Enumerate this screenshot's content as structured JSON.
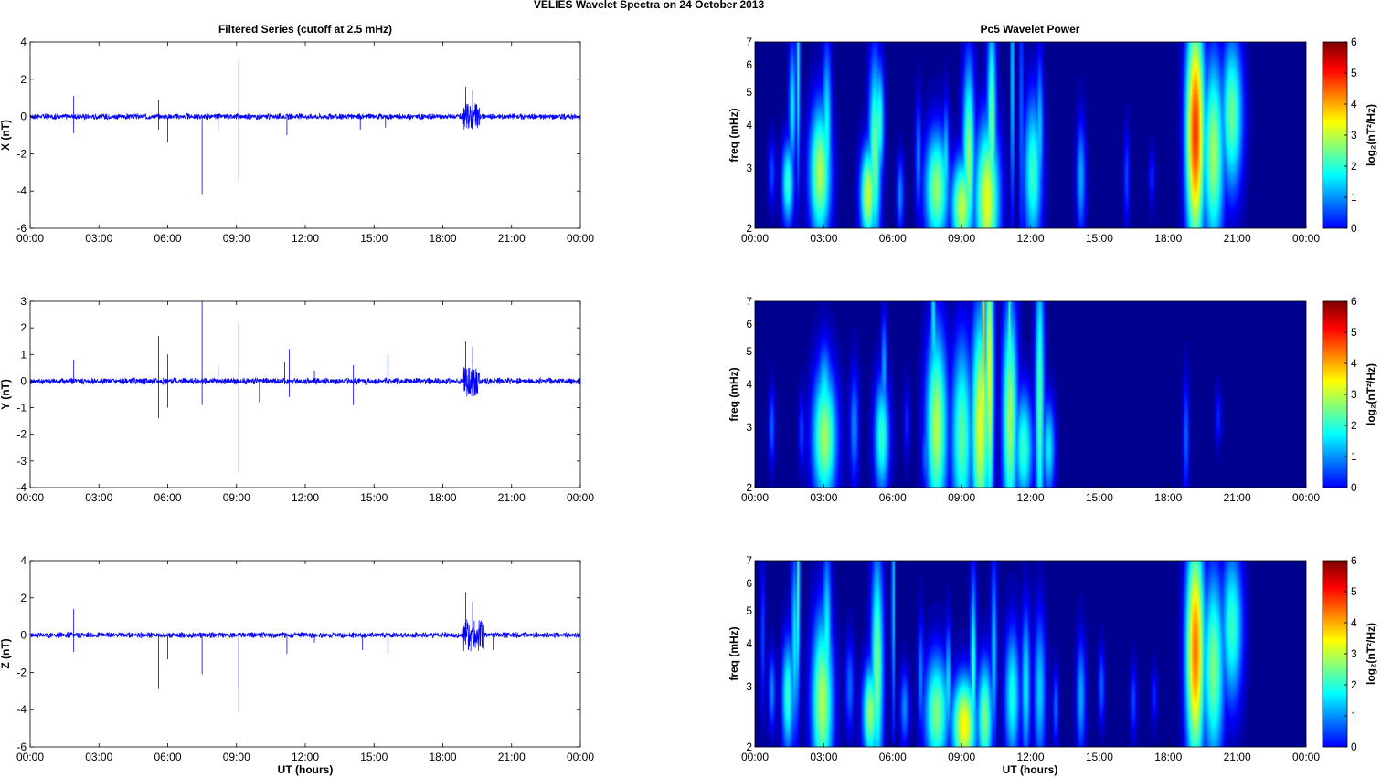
{
  "figure": {
    "title": "VELIES Wavelet Spectra on 24 October   2013",
    "left_title": "Filtered Series (cutoff at 2.5 mHz)",
    "right_title": "Pc5 Wavelet Power",
    "x_label": "UT (hours)",
    "freq_label": "freq (mHz)",
    "colorbar_label": "log₂(nT²/Hz)"
  },
  "chart_data": [
    {
      "type": "line",
      "panel": "X",
      "ylabel": "X (nT)",
      "xlim": [
        0,
        24
      ],
      "ylim": [
        -6,
        4
      ],
      "xticks": [
        "00:00",
        "03:00",
        "06:00",
        "09:00",
        "12:00",
        "15:00",
        "18:00",
        "21:00",
        "00:00"
      ],
      "yticks": [
        -6,
        -4,
        -2,
        0,
        2,
        4
      ],
      "baseline_amplitude": 0.15,
      "series_color": "#0000ff",
      "spikes": [
        [
          1.9,
          1.1
        ],
        [
          1.9,
          -0.9
        ],
        [
          5.6,
          0.9
        ],
        [
          5.6,
          -0.7
        ],
        [
          6.0,
          -1.4
        ],
        [
          7.5,
          -4.2
        ],
        [
          8.2,
          -0.8
        ],
        [
          9.1,
          3.0
        ],
        [
          9.1,
          -3.4
        ],
        [
          11.2,
          -1.0
        ],
        [
          14.4,
          -0.7
        ],
        [
          15.5,
          -0.6
        ],
        [
          19.0,
          1.6
        ],
        [
          19.1,
          -0.4
        ],
        [
          19.3,
          1.4
        ]
      ],
      "burst_hours": [
        [
          18.9,
          19.6,
          0.7
        ]
      ]
    },
    {
      "type": "line",
      "panel": "Y",
      "ylabel": "Y (nT)",
      "xlim": [
        0,
        24
      ],
      "ylim": [
        -4,
        3
      ],
      "xticks": [
        "00:00",
        "03:00",
        "06:00",
        "09:00",
        "12:00",
        "15:00",
        "18:00",
        "21:00",
        "00:00"
      ],
      "yticks": [
        -4,
        -3,
        -2,
        -1,
        0,
        1,
        2,
        3
      ],
      "baseline_amplitude": 0.12,
      "series_color": "#0000ff",
      "spikes": [
        [
          1.9,
          0.8
        ],
        [
          5.6,
          1.7
        ],
        [
          5.6,
          -1.4
        ],
        [
          6.0,
          1.0
        ],
        [
          6.0,
          -1.0
        ],
        [
          7.5,
          3.0
        ],
        [
          7.5,
          -0.9
        ],
        [
          8.2,
          0.6
        ],
        [
          9.1,
          2.2
        ],
        [
          9.1,
          -3.4
        ],
        [
          10.0,
          -0.8
        ],
        [
          11.1,
          0.7
        ],
        [
          11.3,
          1.2
        ],
        [
          11.3,
          -0.6
        ],
        [
          12.4,
          0.4
        ],
        [
          14.1,
          0.6
        ],
        [
          14.1,
          -0.9
        ],
        [
          15.6,
          1.0
        ],
        [
          19.0,
          1.5
        ],
        [
          19.1,
          -0.4
        ],
        [
          19.3,
          1.3
        ]
      ],
      "burst_hours": [
        [
          18.9,
          19.6,
          0.6
        ]
      ]
    },
    {
      "type": "line",
      "panel": "Z",
      "ylabel": "Z (nT)",
      "xlim": [
        0,
        24
      ],
      "ylim": [
        -6,
        4
      ],
      "xticks": [
        "00:00",
        "03:00",
        "06:00",
        "09:00",
        "12:00",
        "15:00",
        "18:00",
        "21:00",
        "00:00"
      ],
      "yticks": [
        -6,
        -4,
        -2,
        0,
        2,
        4
      ],
      "baseline_amplitude": 0.15,
      "series_color": "#0000ff",
      "spikes": [
        [
          1.9,
          1.4
        ],
        [
          1.9,
          -0.9
        ],
        [
          5.6,
          -2.9
        ],
        [
          6.0,
          -1.3
        ],
        [
          7.5,
          -2.1
        ],
        [
          9.1,
          -4.1
        ],
        [
          9.1,
          -2.8
        ],
        [
          11.2,
          -1.0
        ],
        [
          12.4,
          -0.4
        ],
        [
          14.5,
          -0.8
        ],
        [
          15.6,
          -1.0
        ],
        [
          19.0,
          2.3
        ],
        [
          19.0,
          -0.5
        ],
        [
          19.3,
          1.8
        ],
        [
          20.2,
          -0.8
        ]
      ],
      "burst_hours": [
        [
          18.9,
          19.8,
          0.9
        ]
      ]
    },
    {
      "type": "heatmap",
      "panel": "X",
      "ylabel": "freq (mHz)",
      "xlim": [
        0,
        24
      ],
      "ylim": [
        2,
        7
      ],
      "y_scale": "log",
      "clim": [
        0,
        6
      ],
      "background": "#00008f",
      "yticks": [
        2,
        3,
        4,
        5,
        6,
        7
      ],
      "xticks": [
        "00:00",
        "03:00",
        "06:00",
        "09:00",
        "12:00",
        "15:00",
        "18:00",
        "21:00",
        "00:00"
      ],
      "blobs": [
        [
          0.7,
          2.9,
          0.12,
          0.18,
          1.2
        ],
        [
          1.4,
          2.7,
          0.2,
          0.22,
          2.6
        ],
        [
          1.6,
          4.5,
          0.12,
          0.35,
          2.2
        ],
        [
          1.85,
          6.0,
          0.06,
          0.6,
          2.6
        ],
        [
          2.8,
          2.9,
          0.35,
          0.35,
          3.3
        ],
        [
          3.1,
          3.8,
          0.15,
          0.45,
          2.4
        ],
        [
          4.9,
          2.5,
          0.25,
          0.25,
          3.5
        ],
        [
          5.2,
          3.3,
          0.2,
          0.5,
          3.0
        ],
        [
          5.4,
          4.1,
          0.15,
          0.3,
          2.6
        ],
        [
          6.3,
          2.5,
          0.12,
          0.2,
          1.6
        ],
        [
          7.1,
          3.2,
          0.1,
          0.3,
          1.6
        ],
        [
          7.9,
          2.6,
          0.4,
          0.3,
          3.1
        ],
        [
          8.3,
          3.1,
          0.1,
          0.3,
          2.2
        ],
        [
          9.0,
          2.3,
          0.35,
          0.25,
          3.4
        ],
        [
          9.3,
          3.2,
          0.2,
          0.5,
          3.1
        ],
        [
          10.1,
          2.4,
          0.4,
          0.4,
          3.6
        ],
        [
          10.3,
          3.9,
          0.15,
          0.6,
          3.0
        ],
        [
          11.2,
          5.4,
          0.05,
          0.7,
          2.4
        ],
        [
          11.6,
          4.0,
          0.08,
          0.8,
          1.4
        ],
        [
          12.1,
          2.9,
          0.3,
          0.4,
          2.6
        ],
        [
          12.4,
          3.8,
          0.12,
          0.4,
          2.0
        ],
        [
          14.2,
          2.8,
          0.15,
          0.3,
          1.8
        ],
        [
          16.2,
          2.8,
          0.1,
          0.25,
          1.2
        ],
        [
          17.3,
          2.8,
          0.1,
          0.15,
          1.0
        ],
        [
          19.2,
          3.8,
          0.3,
          0.6,
          5.0
        ],
        [
          19.4,
          5.0,
          0.08,
          0.5,
          3.0
        ],
        [
          20.0,
          3.3,
          0.35,
          0.5,
          3.2
        ],
        [
          20.8,
          4.3,
          0.35,
          0.4,
          2.9
        ]
      ]
    },
    {
      "type": "heatmap",
      "panel": "Y",
      "ylabel": "freq (mHz)",
      "xlim": [
        0,
        24
      ],
      "ylim": [
        2,
        7
      ],
      "y_scale": "log",
      "clim": [
        0,
        6
      ],
      "background": "#00008f",
      "yticks": [
        2,
        3,
        4,
        5,
        6,
        7
      ],
      "xticks": [
        "00:00",
        "03:00",
        "06:00",
        "09:00",
        "12:00",
        "15:00",
        "18:00",
        "21:00",
        "00:00"
      ],
      "blobs": [
        [
          0.7,
          3.0,
          0.1,
          0.2,
          1.4
        ],
        [
          2.0,
          2.9,
          0.1,
          0.2,
          1.2
        ],
        [
          3.0,
          2.8,
          0.4,
          0.35,
          3.2
        ],
        [
          3.0,
          3.5,
          0.25,
          0.3,
          2.4
        ],
        [
          4.3,
          3.0,
          0.15,
          0.3,
          1.6
        ],
        [
          5.5,
          2.8,
          0.25,
          0.3,
          2.6
        ],
        [
          5.6,
          4.4,
          0.1,
          0.3,
          1.8
        ],
        [
          6.6,
          3.1,
          0.1,
          0.2,
          1.0
        ],
        [
          7.4,
          2.5,
          0.12,
          0.2,
          1.4
        ],
        [
          7.9,
          3.0,
          0.35,
          0.5,
          3.3
        ],
        [
          7.75,
          6.2,
          0.05,
          0.6,
          2.8
        ],
        [
          9.0,
          2.8,
          0.35,
          0.5,
          2.8
        ],
        [
          9.8,
          3.0,
          0.3,
          0.6,
          3.6
        ],
        [
          9.95,
          5.5,
          0.06,
          0.8,
          4.2
        ],
        [
          10.2,
          4.3,
          0.15,
          0.8,
          3.6
        ],
        [
          11.1,
          3.2,
          0.25,
          0.6,
          3.2
        ],
        [
          11.1,
          5.9,
          0.05,
          0.6,
          3.0
        ],
        [
          11.7,
          2.6,
          0.3,
          0.3,
          2.6
        ],
        [
          12.4,
          3.5,
          0.15,
          0.8,
          2.8
        ],
        [
          12.8,
          2.6,
          0.2,
          0.25,
          2.2
        ],
        [
          18.8,
          2.8,
          0.1,
          0.3,
          1.4
        ],
        [
          20.2,
          3.2,
          0.1,
          0.15,
          1.0
        ]
      ]
    },
    {
      "type": "heatmap",
      "panel": "Z",
      "ylabel": "freq (mHz)",
      "xlim": [
        0,
        24
      ],
      "ylim": [
        2,
        7
      ],
      "y_scale": "log",
      "clim": [
        0,
        6
      ],
      "background": "#00008f",
      "yticks": [
        2,
        3,
        4,
        5,
        6,
        7
      ],
      "xticks": [
        "00:00",
        "03:00",
        "06:00",
        "09:00",
        "12:00",
        "15:00",
        "18:00",
        "21:00",
        "00:00"
      ],
      "blobs": [
        [
          0.3,
          4.2,
          0.08,
          0.4,
          1.2
        ],
        [
          0.7,
          2.9,
          0.12,
          0.2,
          1.6
        ],
        [
          1.4,
          2.8,
          0.2,
          0.3,
          2.6
        ],
        [
          1.7,
          4.0,
          0.12,
          0.5,
          2.2
        ],
        [
          1.85,
          6.0,
          0.06,
          0.6,
          2.8
        ],
        [
          2.9,
          2.7,
          0.35,
          0.45,
          3.3
        ],
        [
          3.1,
          4.0,
          0.15,
          0.5,
          2.4
        ],
        [
          4.1,
          3.0,
          0.15,
          0.25,
          1.4
        ],
        [
          5.0,
          2.5,
          0.25,
          0.25,
          3.2
        ],
        [
          5.3,
          3.4,
          0.2,
          0.6,
          3.0
        ],
        [
          6.0,
          5.5,
          0.05,
          0.7,
          2.2
        ],
        [
          6.5,
          2.6,
          0.15,
          0.2,
          1.6
        ],
        [
          7.2,
          3.2,
          0.1,
          0.3,
          1.6
        ],
        [
          7.9,
          2.5,
          0.4,
          0.3,
          3.0
        ],
        [
          8.4,
          3.0,
          0.1,
          0.3,
          2.2
        ],
        [
          9.1,
          2.3,
          0.4,
          0.25,
          3.8
        ],
        [
          9.5,
          3.3,
          0.1,
          0.5,
          2.6
        ],
        [
          10.0,
          2.4,
          0.25,
          0.3,
          3.0
        ],
        [
          10.4,
          3.7,
          0.1,
          0.5,
          2.0
        ],
        [
          11.2,
          2.8,
          0.25,
          0.35,
          2.4
        ],
        [
          11.8,
          3.0,
          0.15,
          0.4,
          2.2
        ],
        [
          12.4,
          2.9,
          0.2,
          0.4,
          2.0
        ],
        [
          13.1,
          2.6,
          0.1,
          0.2,
          1.4
        ],
        [
          14.2,
          2.8,
          0.15,
          0.3,
          1.8
        ],
        [
          15.1,
          3.0,
          0.1,
          0.2,
          1.4
        ],
        [
          16.5,
          2.7,
          0.1,
          0.2,
          1.2
        ],
        [
          17.4,
          2.8,
          0.1,
          0.15,
          1.0
        ],
        [
          19.2,
          3.8,
          0.3,
          0.6,
          4.6
        ],
        [
          19.3,
          5.2,
          0.08,
          0.6,
          2.8
        ],
        [
          20.0,
          3.4,
          0.35,
          0.5,
          3.0
        ],
        [
          20.8,
          4.5,
          0.35,
          0.4,
          2.6
        ]
      ]
    }
  ]
}
